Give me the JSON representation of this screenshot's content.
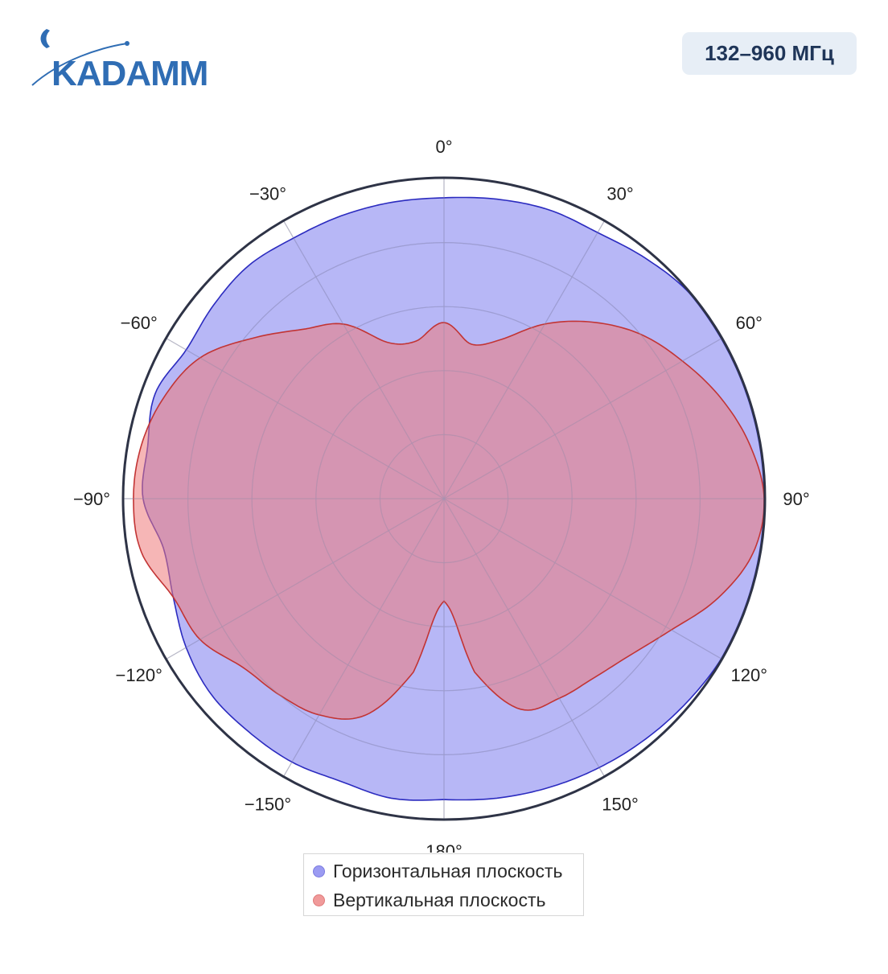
{
  "logo": {
    "text": "KADAMM",
    "color": "#2f6db4"
  },
  "badge": {
    "text": "132–960 МГц"
  },
  "chart_data": {
    "type": "polar-area",
    "title": "",
    "angular_unit": "degrees",
    "angular_zero": "top",
    "angular_direction": "clockwise",
    "angular_tick_labels": [
      "0°",
      "30°",
      "60°",
      "90°",
      "120°",
      "150°",
      "180°",
      "−150°",
      "−120°",
      "−90°",
      "−60°",
      "−30°"
    ],
    "angular_tick_values": [
      0,
      30,
      60,
      90,
      120,
      150,
      180,
      -150,
      -120,
      -90,
      -60,
      -30
    ],
    "radial_range": [
      0,
      1
    ],
    "radial_gridlines": [
      0.2,
      0.4,
      0.6,
      0.8
    ],
    "radial_tick_labels_visible": false,
    "grid": true,
    "legend_position": "bottom",
    "series": [
      {
        "name": "Горизонтальная плоскость",
        "fill_color": "#7b7bef",
        "line_color": "#2b2bbf",
        "angles": [
          -180,
          -170,
          -160,
          -150,
          -140,
          -130,
          -120,
          -110,
          -100,
          -90,
          -80,
          -70,
          -60,
          -50,
          -40,
          -30,
          -20,
          -10,
          0,
          10,
          20,
          30,
          40,
          50,
          60,
          70,
          80,
          90,
          100,
          110,
          120,
          130,
          140,
          150,
          160,
          170,
          180
        ],
        "values": [
          0.94,
          0.95,
          0.94,
          0.95,
          0.95,
          0.95,
          0.93,
          0.9,
          0.89,
          0.94,
          0.94,
          0.96,
          0.93,
          0.94,
          0.95,
          0.94,
          0.94,
          0.94,
          0.94,
          0.95,
          0.96,
          0.96,
          0.98,
          1.0,
          1.0,
          1.0,
          1.0,
          1.0,
          1.0,
          1.0,
          1.0,
          0.99,
          0.98,
          0.97,
          0.96,
          0.95,
          0.94
        ]
      },
      {
        "name": "Вертикальная плоскость",
        "fill_color": "#ee7a7a",
        "line_color": "#c23434",
        "angles": [
          -180,
          -175,
          -170,
          -160,
          -150,
          -140,
          -130,
          -120,
          -110,
          -100,
          -90,
          -80,
          -70,
          -60,
          -50,
          -40,
          -30,
          -20,
          -10,
          0,
          10,
          20,
          30,
          40,
          50,
          60,
          70,
          80,
          90,
          100,
          110,
          120,
          130,
          140,
          150,
          160,
          170,
          175,
          180
        ],
        "values": [
          0.32,
          0.38,
          0.55,
          0.72,
          0.78,
          0.8,
          0.82,
          0.88,
          0.9,
          0.96,
          0.97,
          0.96,
          0.93,
          0.88,
          0.78,
          0.69,
          0.63,
          0.52,
          0.5,
          0.55,
          0.49,
          0.53,
          0.63,
          0.72,
          0.8,
          0.86,
          0.92,
          0.97,
          1.0,
          0.98,
          0.91,
          0.82,
          0.76,
          0.73,
          0.72,
          0.7,
          0.55,
          0.38,
          0.32
        ]
      }
    ]
  }
}
